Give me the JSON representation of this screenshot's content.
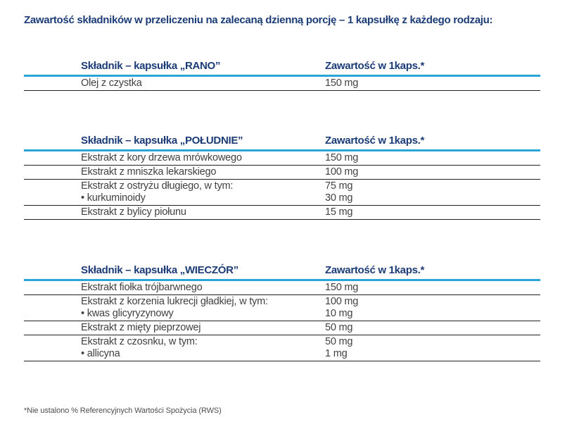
{
  "page": {
    "title": "Zawartość składników w przeliczeniu na zalecaną dzienną porcję – 1 kapsułkę z każdego rodzaju:",
    "footnote": "*Nie ustalono % Referencyjnych Wartości Spożycia (RWS)"
  },
  "colors": {
    "navy": "#1c3c77",
    "cyan": "#2aa5d8",
    "line_dark": "#242021",
    "body_text": "#414042",
    "footnote_text": "#4d4d4f"
  },
  "tables": [
    {
      "header": {
        "ingredient": "Składnik – kapsułka „RANO”",
        "amount": "Zawartość w 1kaps.*"
      },
      "rows": [
        {
          "ingredient": [
            "Olej z czystka"
          ],
          "amount": [
            "150 mg"
          ]
        }
      ]
    },
    {
      "header": {
        "ingredient": "Składnik – kapsułka „POŁUDNIE”",
        "amount": "Zawartość w 1kaps.*"
      },
      "rows": [
        {
          "ingredient": [
            "Ekstrakt z kory drzewa mrówkowego"
          ],
          "amount": [
            "150 mg"
          ]
        },
        {
          "ingredient": [
            "Ekstrakt z mniszka lekarskiego"
          ],
          "amount": [
            "100 mg"
          ]
        },
        {
          "ingredient": [
            "Ekstrakt z ostryżu długiego, w tym:",
            "• kurkuminoidy"
          ],
          "amount": [
            "75 mg",
            "30 mg"
          ]
        },
        {
          "ingredient": [
            "Ekstrakt z bylicy piołunu"
          ],
          "amount": [
            "15 mg"
          ]
        }
      ]
    },
    {
      "header": {
        "ingredient": "Składnik – kapsułka „WIECZÓR”",
        "amount": "Zawartość w 1kaps.*"
      },
      "rows": [
        {
          "ingredient": [
            "Ekstrakt fiołka trójbarwnego"
          ],
          "amount": [
            "150 mg"
          ]
        },
        {
          "ingredient": [
            "Ekstrakt z korzenia lukrecji gładkiej, w tym:",
            "• kwas glicyryzynowy"
          ],
          "amount": [
            "100 mg",
            "10 mg"
          ]
        },
        {
          "ingredient": [
            "Ekstrakt z mięty pieprzowej"
          ],
          "amount": [
            "50 mg"
          ]
        },
        {
          "ingredient": [
            "Ekstrakt z czosnku, w tym:",
            "• allicyna"
          ],
          "amount": [
            "50 mg",
            "1 mg"
          ]
        }
      ]
    }
  ]
}
